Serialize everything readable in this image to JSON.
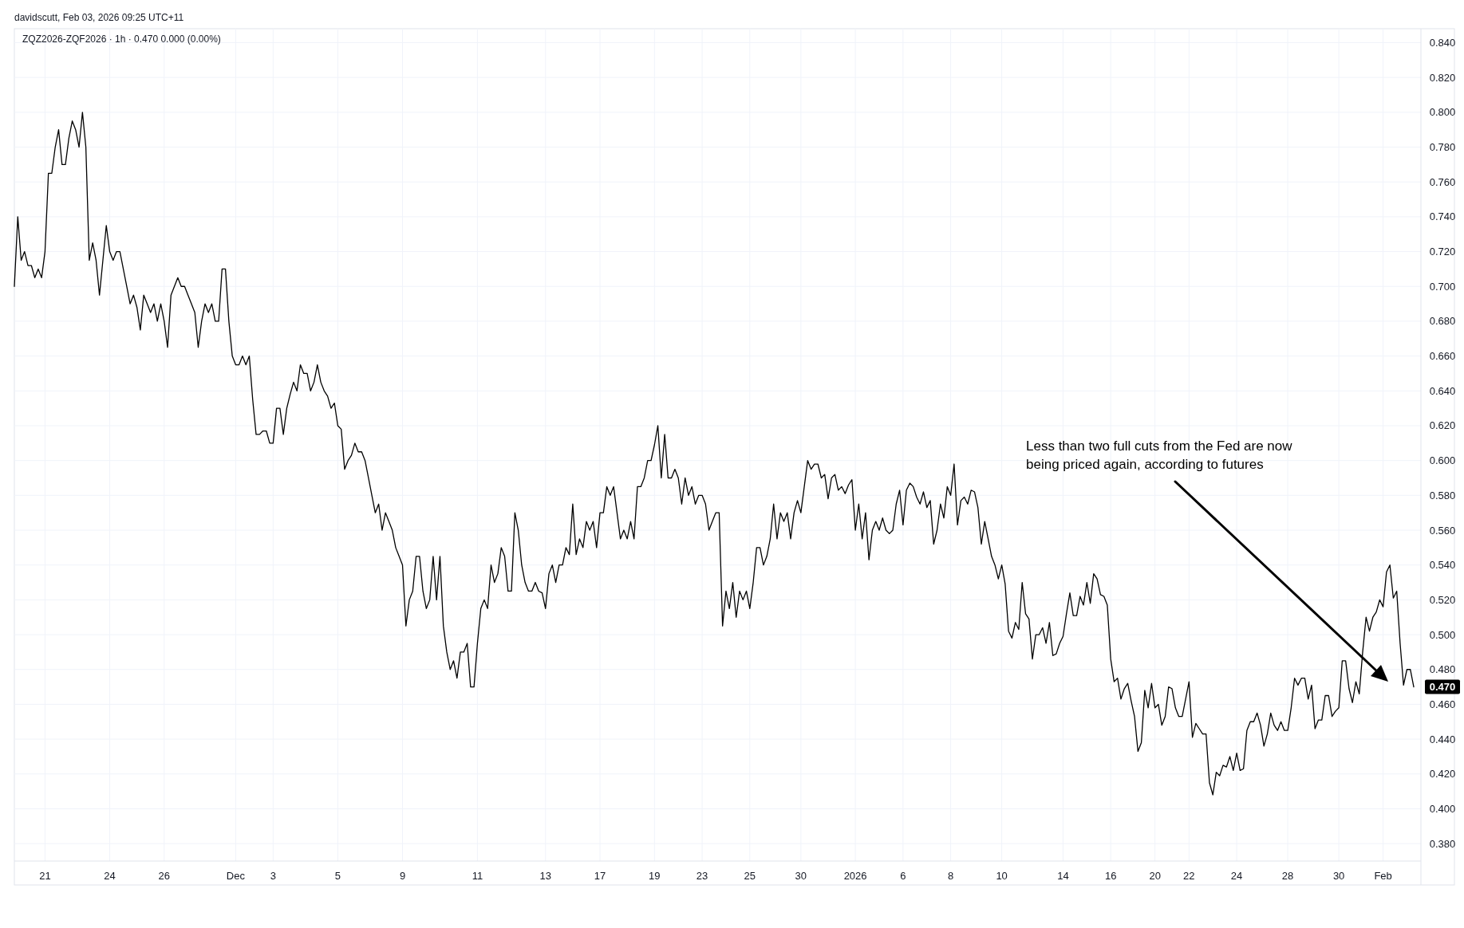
{
  "chart_data": {
    "type": "line",
    "title": "ZQZ2026-ZQF2026 · 1h · 0.470 0.000 (0.00%)",
    "annotations": [
      "davidscutt, Feb 03, 2026 09:25 UTC+11",
      "Less than two full cuts from the Fed are now being priced again, according to futures",
      "0.470"
    ],
    "series": [
      {
        "color": "#000000",
        "values": [
          0.7,
          0.74,
          0.715,
          0.72,
          0.712,
          0.712,
          0.705,
          0.71,
          0.705,
          0.72,
          0.765,
          0.765,
          0.78,
          0.79,
          0.77,
          0.77,
          0.785,
          0.795,
          0.79,
          0.78,
          0.8,
          0.78,
          0.715,
          0.725,
          0.715,
          0.695,
          0.715,
          0.735,
          0.72,
          0.715,
          0.72,
          0.72,
          0.71,
          0.7,
          0.69,
          0.695,
          0.688,
          0.675,
          0.695,
          0.69,
          0.685,
          0.69,
          0.68,
          0.69,
          0.68,
          0.665,
          0.695,
          0.7,
          0.705,
          0.7,
          0.7,
          0.695,
          0.69,
          0.685,
          0.665,
          0.68,
          0.69,
          0.685,
          0.69,
          0.68,
          0.68,
          0.71,
          0.71,
          0.68,
          0.66,
          0.655,
          0.655,
          0.66,
          0.655,
          0.66,
          0.635,
          0.615,
          0.615,
          0.617,
          0.617,
          0.61,
          0.61,
          0.63,
          0.63,
          0.615,
          0.63,
          0.638,
          0.645,
          0.64,
          0.655,
          0.65,
          0.65,
          0.64,
          0.645,
          0.655,
          0.645,
          0.64,
          0.637,
          0.63,
          0.633,
          0.62,
          0.618,
          0.595,
          0.6,
          0.603,
          0.61,
          0.605,
          0.605,
          0.6,
          0.59,
          0.58,
          0.57,
          0.575,
          0.56,
          0.57,
          0.565,
          0.56,
          0.55,
          0.545,
          0.54,
          0.505,
          0.52,
          0.525,
          0.545,
          0.545,
          0.525,
          0.515,
          0.52,
          0.545,
          0.52,
          0.545,
          0.505,
          0.49,
          0.48,
          0.485,
          0.475,
          0.49,
          0.49,
          0.495,
          0.47,
          0.47,
          0.495,
          0.515,
          0.52,
          0.515,
          0.54,
          0.53,
          0.535,
          0.55,
          0.545,
          0.525,
          0.525,
          0.57,
          0.56,
          0.54,
          0.53,
          0.525,
          0.525,
          0.53,
          0.525,
          0.524,
          0.515,
          0.535,
          0.54,
          0.53,
          0.54,
          0.54,
          0.55,
          0.546,
          0.575,
          0.546,
          0.555,
          0.55,
          0.565,
          0.56,
          0.565,
          0.55,
          0.57,
          0.57,
          0.585,
          0.58,
          0.585,
          0.57,
          0.555,
          0.56,
          0.555,
          0.565,
          0.555,
          0.585,
          0.585,
          0.59,
          0.6,
          0.6,
          0.609,
          0.62,
          0.59,
          0.615,
          0.59,
          0.59,
          0.595,
          0.59,
          0.575,
          0.59,
          0.58,
          0.585,
          0.575,
          0.58,
          0.58,
          0.575,
          0.56,
          0.565,
          0.57,
          0.57,
          0.505,
          0.525,
          0.515,
          0.53,
          0.51,
          0.525,
          0.52,
          0.525,
          0.515,
          0.53,
          0.55,
          0.55,
          0.54,
          0.545,
          0.555,
          0.575,
          0.555,
          0.57,
          0.565,
          0.57,
          0.555,
          0.57,
          0.577,
          0.57,
          0.585,
          0.6,
          0.595,
          0.598,
          0.598,
          0.59,
          0.592,
          0.578,
          0.59,
          0.592,
          0.583,
          0.585,
          0.581,
          0.586,
          0.589,
          0.56,
          0.575,
          0.555,
          0.57,
          0.543,
          0.56,
          0.565,
          0.56,
          0.567,
          0.56,
          0.558,
          0.56,
          0.575,
          0.583,
          0.563,
          0.583,
          0.587,
          0.585,
          0.579,
          0.575,
          0.582,
          0.573,
          0.577,
          0.552,
          0.56,
          0.575,
          0.567,
          0.585,
          0.58,
          0.598,
          0.563,
          0.577,
          0.579,
          0.575,
          0.583,
          0.582,
          0.573,
          0.552,
          0.565,
          0.555,
          0.545,
          0.54,
          0.532,
          0.54,
          0.529,
          0.502,
          0.498,
          0.507,
          0.503,
          0.53,
          0.512,
          0.509,
          0.486,
          0.5,
          0.5,
          0.504,
          0.495,
          0.507,
          0.488,
          0.489,
          0.495,
          0.499,
          0.512,
          0.524,
          0.511,
          0.511,
          0.522,
          0.517,
          0.53,
          0.518,
          0.535,
          0.532,
          0.523,
          0.522,
          0.517,
          0.486,
          0.473,
          0.475,
          0.463,
          0.469,
          0.472,
          0.462,
          0.453,
          0.433,
          0.438,
          0.468,
          0.458,
          0.472,
          0.458,
          0.46,
          0.448,
          0.453,
          0.47,
          0.469,
          0.458,
          0.453,
          0.453,
          0.463,
          0.473,
          0.441,
          0.449,
          0.446,
          0.443,
          0.443,
          0.415,
          0.408,
          0.421,
          0.419,
          0.425,
          0.424,
          0.43,
          0.422,
          0.432,
          0.422,
          0.423,
          0.445,
          0.45,
          0.45,
          0.455,
          0.448,
          0.436,
          0.443,
          0.455,
          0.448,
          0.445,
          0.45,
          0.445,
          0.445,
          0.458,
          0.475,
          0.471,
          0.475,
          0.475,
          0.463,
          0.471,
          0.446,
          0.451,
          0.451,
          0.465,
          0.465,
          0.453,
          0.456,
          0.458,
          0.485,
          0.485,
          0.469,
          0.461,
          0.473,
          0.466,
          0.49,
          0.51,
          0.502,
          0.51,
          0.513,
          0.52,
          0.516,
          0.536,
          0.54,
          0.521,
          0.525,
          0.495,
          0.471,
          0.48,
          0.48,
          0.47
        ]
      }
    ],
    "categories": [
      null,
      null,
      null,
      null,
      null,
      null,
      null,
      null,
      null,
      "21",
      null,
      null,
      null,
      null,
      null,
      null,
      null,
      null,
      null,
      null,
      null,
      null,
      null,
      null,
      null,
      null,
      null,
      null,
      "24",
      null,
      null,
      null,
      null,
      null,
      null,
      null,
      null,
      null,
      null,
      null,
      null,
      null,
      null,
      null,
      "26",
      null,
      null,
      null,
      null,
      null,
      null,
      null,
      null,
      null,
      null,
      null,
      null,
      null,
      null,
      null,
      null,
      null,
      null,
      null,
      null,
      "Dec",
      null,
      null,
      null,
      null,
      null,
      null,
      null,
      null,
      null,
      null,
      "3",
      null,
      null,
      null,
      null,
      null,
      null,
      null,
      null,
      null,
      null,
      null,
      null,
      null,
      null,
      null,
      null,
      null,
      null,
      "5",
      null,
      null,
      null,
      null,
      null,
      null,
      null,
      null,
      null,
      null,
      null,
      null,
      null,
      null,
      null,
      null,
      null,
      null,
      "9",
      null,
      null,
      null,
      null,
      null,
      null,
      null,
      null,
      null,
      null,
      null,
      null,
      null,
      null,
      null,
      null,
      null,
      null,
      null,
      null,
      null,
      "11",
      null,
      null,
      null,
      null,
      null,
      null,
      null,
      null,
      null,
      null,
      null,
      null,
      null,
      null,
      null,
      null,
      null,
      null,
      null,
      "13",
      null,
      null,
      null,
      null,
      null,
      null,
      null,
      null,
      null,
      null,
      null,
      null,
      null,
      null,
      null,
      "17",
      null,
      null,
      null,
      null,
      null,
      null,
      null,
      null,
      null,
      null,
      null,
      null,
      null,
      null,
      null,
      "19",
      null,
      null,
      null,
      null,
      null,
      null,
      null,
      null,
      null,
      null,
      null,
      null,
      null,
      "23",
      null,
      null,
      null,
      null,
      null,
      null,
      null,
      null,
      null,
      null,
      null,
      null,
      null,
      "25",
      null,
      null,
      null,
      null,
      null,
      null,
      null,
      null,
      null,
      null,
      null,
      null,
      null,
      null,
      "30",
      null,
      null,
      null,
      null,
      null,
      null,
      null,
      null,
      null,
      null,
      null,
      null,
      null,
      null,
      null,
      "2026",
      null,
      null,
      null,
      null,
      null,
      null,
      null,
      null,
      null,
      null,
      null,
      null,
      null,
      "6",
      null,
      null,
      null,
      null,
      null,
      null,
      null,
      null,
      null,
      null,
      null,
      null,
      null,
      "8",
      null,
      null,
      null,
      null,
      null,
      null,
      null,
      null,
      null,
      null,
      null,
      null,
      null,
      null,
      "10",
      null,
      null,
      null,
      null,
      null,
      null,
      null,
      null,
      null,
      null,
      null,
      null,
      null,
      null,
      null,
      null,
      null,
      "14",
      null,
      null,
      null,
      null,
      null,
      null,
      null,
      null,
      null,
      null,
      null,
      null,
      null,
      "16",
      null,
      null,
      null,
      null,
      null,
      null,
      null,
      null,
      null,
      null,
      null,
      null,
      "20",
      null,
      null,
      null,
      null,
      null,
      null,
      null,
      null,
      null,
      "22",
      null,
      null,
      null,
      null,
      null,
      null,
      null,
      null,
      null,
      null,
      null,
      null,
      null,
      "24",
      null,
      null,
      null,
      null,
      null,
      null,
      null,
      null,
      null,
      null,
      null,
      null,
      null,
      null,
      "28",
      null,
      null,
      null,
      null,
      null,
      null,
      null,
      null,
      null,
      null,
      null,
      null,
      null,
      null,
      "30",
      null,
      null,
      null,
      null,
      null,
      null,
      null,
      null,
      null,
      null,
      null,
      null,
      "Feb",
      null,
      null,
      null,
      null,
      null,
      null,
      null,
      null,
      null
    ],
    "ylim": [
      0.37,
      0.848
    ],
    "yticks": [
      {
        "value": 0.38,
        "label": "0.380"
      },
      {
        "value": 0.4,
        "label": "0.400"
      },
      {
        "value": 0.42,
        "label": "0.420"
      },
      {
        "value": 0.44,
        "label": "0.440"
      },
      {
        "value": 0.46,
        "label": "0.460"
      },
      {
        "value": 0.48,
        "label": "0.480"
      },
      {
        "value": 0.5,
        "label": "0.500"
      },
      {
        "value": 0.52,
        "label": "0.520"
      },
      {
        "value": 0.54,
        "label": "0.540"
      },
      {
        "value": 0.56,
        "label": "0.560"
      },
      {
        "value": 0.58,
        "label": "0.580"
      },
      {
        "value": 0.6,
        "label": "0.600"
      },
      {
        "value": 0.62,
        "label": "0.620"
      },
      {
        "value": 0.64,
        "label": "0.640"
      },
      {
        "value": 0.66,
        "label": "0.660"
      },
      {
        "value": 0.68,
        "label": "0.680"
      },
      {
        "value": 0.7,
        "label": "0.700"
      },
      {
        "value": 0.72,
        "label": "0.720"
      },
      {
        "value": 0.74,
        "label": "0.740"
      },
      {
        "value": 0.76,
        "label": "0.760"
      },
      {
        "value": 0.78,
        "label": "0.780"
      },
      {
        "value": 0.8,
        "label": "0.800"
      },
      {
        "value": 0.82,
        "label": "0.820"
      },
      {
        "value": 0.84,
        "label": "0.840"
      }
    ],
    "grid": true
  }
}
